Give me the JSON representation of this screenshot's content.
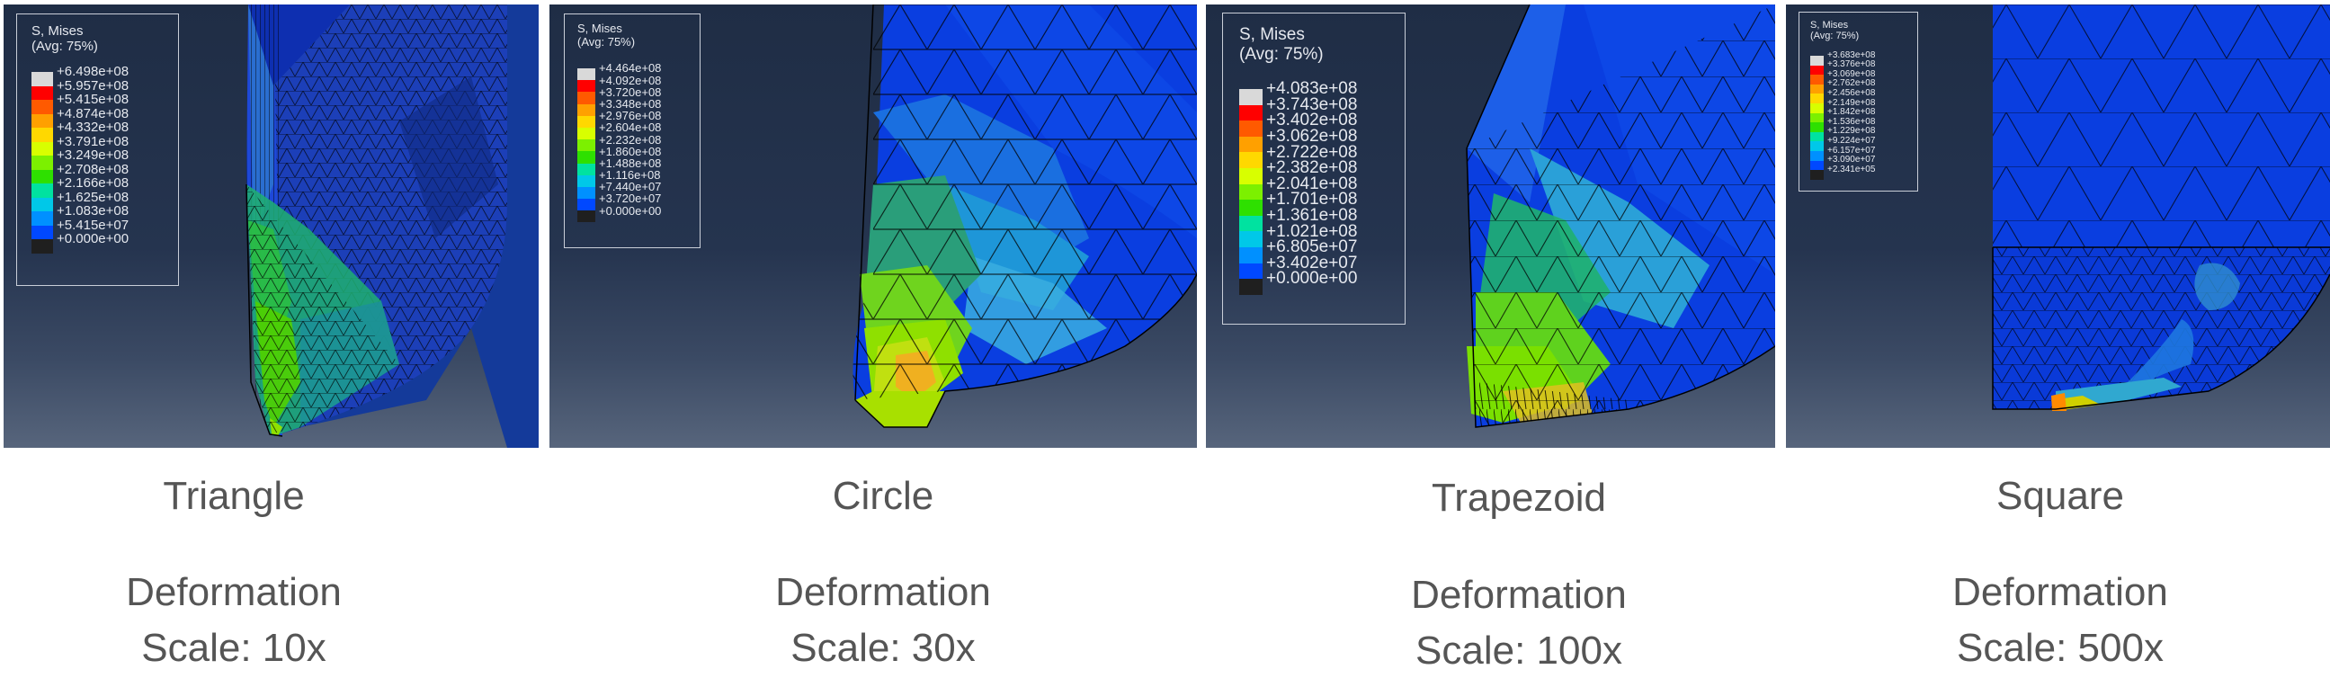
{
  "panels": [
    {
      "title": "Triangle",
      "deformation_label": "Deformation",
      "scale_label": "Scale: 10x",
      "legend": {
        "title": "S, Mises",
        "subtitle": "(Avg: 75%)",
        "values": [
          "+6.498e+08",
          "+5.957e+08",
          "+5.415e+08",
          "+4.874e+08",
          "+4.332e+08",
          "+3.791e+08",
          "+3.249e+08",
          "+2.708e+08",
          "+2.166e+08",
          "+1.625e+08",
          "+1.083e+08",
          "+5.415e+07",
          "+0.000e+00"
        ]
      }
    },
    {
      "title": "Circle",
      "deformation_label": "Deformation",
      "scale_label": "Scale: 30x",
      "legend": {
        "title": "S, Mises",
        "subtitle": "(Avg: 75%)",
        "values": [
          "+4.464e+08",
          "+4.092e+08",
          "+3.720e+08",
          "+3.348e+08",
          "+2.976e+08",
          "+2.604e+08",
          "+2.232e+08",
          "+1.860e+08",
          "+1.488e+08",
          "+1.116e+08",
          "+7.440e+07",
          "+3.720e+07",
          "+0.000e+00"
        ]
      }
    },
    {
      "title": "Trapezoid",
      "deformation_label": "Deformation",
      "scale_label": "Scale: 100x",
      "legend": {
        "title": "S, Mises",
        "subtitle": "(Avg: 75%)",
        "values": [
          "+4.083e+08",
          "+3.743e+08",
          "+3.402e+08",
          "+3.062e+08",
          "+2.722e+08",
          "+2.382e+08",
          "+2.041e+08",
          "+1.701e+08",
          "+1.361e+08",
          "+1.021e+08",
          "+6.805e+07",
          "+3.402e+07",
          "+0.000e+00"
        ]
      }
    },
    {
      "title": "Square",
      "deformation_label": "Deformation",
      "scale_label": "Scale: 500x",
      "legend": {
        "title": "S, Mises",
        "subtitle": "(Avg: 75%)",
        "values": [
          "+3.683e+08",
          "+3.376e+08",
          "+3.069e+08",
          "+2.762e+08",
          "+2.456e+08",
          "+2.149e+08",
          "+1.842e+08",
          "+1.536e+08",
          "+1.229e+08",
          "+9.224e+07",
          "+6.157e+07",
          "+3.090e+07",
          "+2.341e+05"
        ]
      }
    }
  ],
  "colors": {
    "scale": [
      "#d9d9d9",
      "#ff0000",
      "#ff5a00",
      "#ffa000",
      "#ffd800",
      "#d8ff00",
      "#7cf000",
      "#2ee000",
      "#00e2a0",
      "#00c8e8",
      "#0090ff",
      "#0048ff",
      "#1f1f1f"
    ],
    "background_top": "#1f2d45",
    "mesh_blue": "#0a3ee0",
    "caption_text": "#555555"
  }
}
